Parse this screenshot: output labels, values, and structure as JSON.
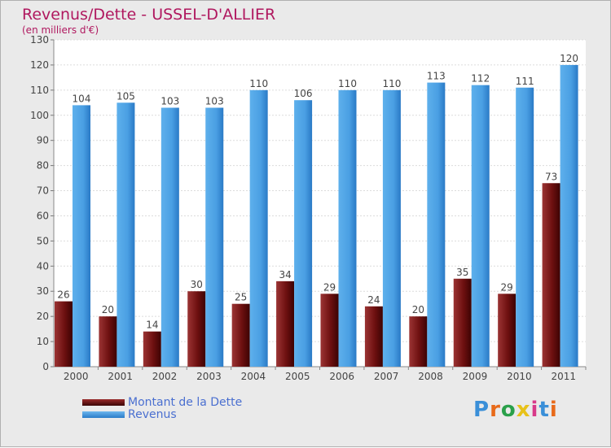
{
  "title": "Revenus/Dette - USSEL-D'ALLIER",
  "subtitle": "(en milliers d'€)",
  "logo_text": "Proxiti",
  "colors": {
    "dette": "#7a1a1a",
    "revenus": "#4da3e6",
    "title": "#b0185f",
    "legend_text": "#4a6fd0"
  },
  "chart_data": {
    "type": "bar",
    "title": "Revenus/Dette - USSEL-D'ALLIER",
    "ylabel": "(en milliers d'€)",
    "xlabel": "",
    "ylim": [
      0,
      130
    ],
    "yticks": [
      0,
      10,
      20,
      30,
      40,
      50,
      60,
      70,
      80,
      90,
      100,
      110,
      120,
      130
    ],
    "grid": true,
    "legend_position": "bottom-left",
    "categories": [
      "2000",
      "2001",
      "2002",
      "2003",
      "2004",
      "2005",
      "2006",
      "2007",
      "2008",
      "2009",
      "2010",
      "2011"
    ],
    "series": [
      {
        "name": "Montant de la Dette",
        "values": [
          26,
          20,
          14,
          30,
          25,
          34,
          29,
          24,
          20,
          35,
          29,
          73
        ]
      },
      {
        "name": "Revenus",
        "values": [
          104,
          105,
          103,
          103,
          110,
          106,
          110,
          110,
          113,
          112,
          111,
          120
        ]
      }
    ]
  }
}
